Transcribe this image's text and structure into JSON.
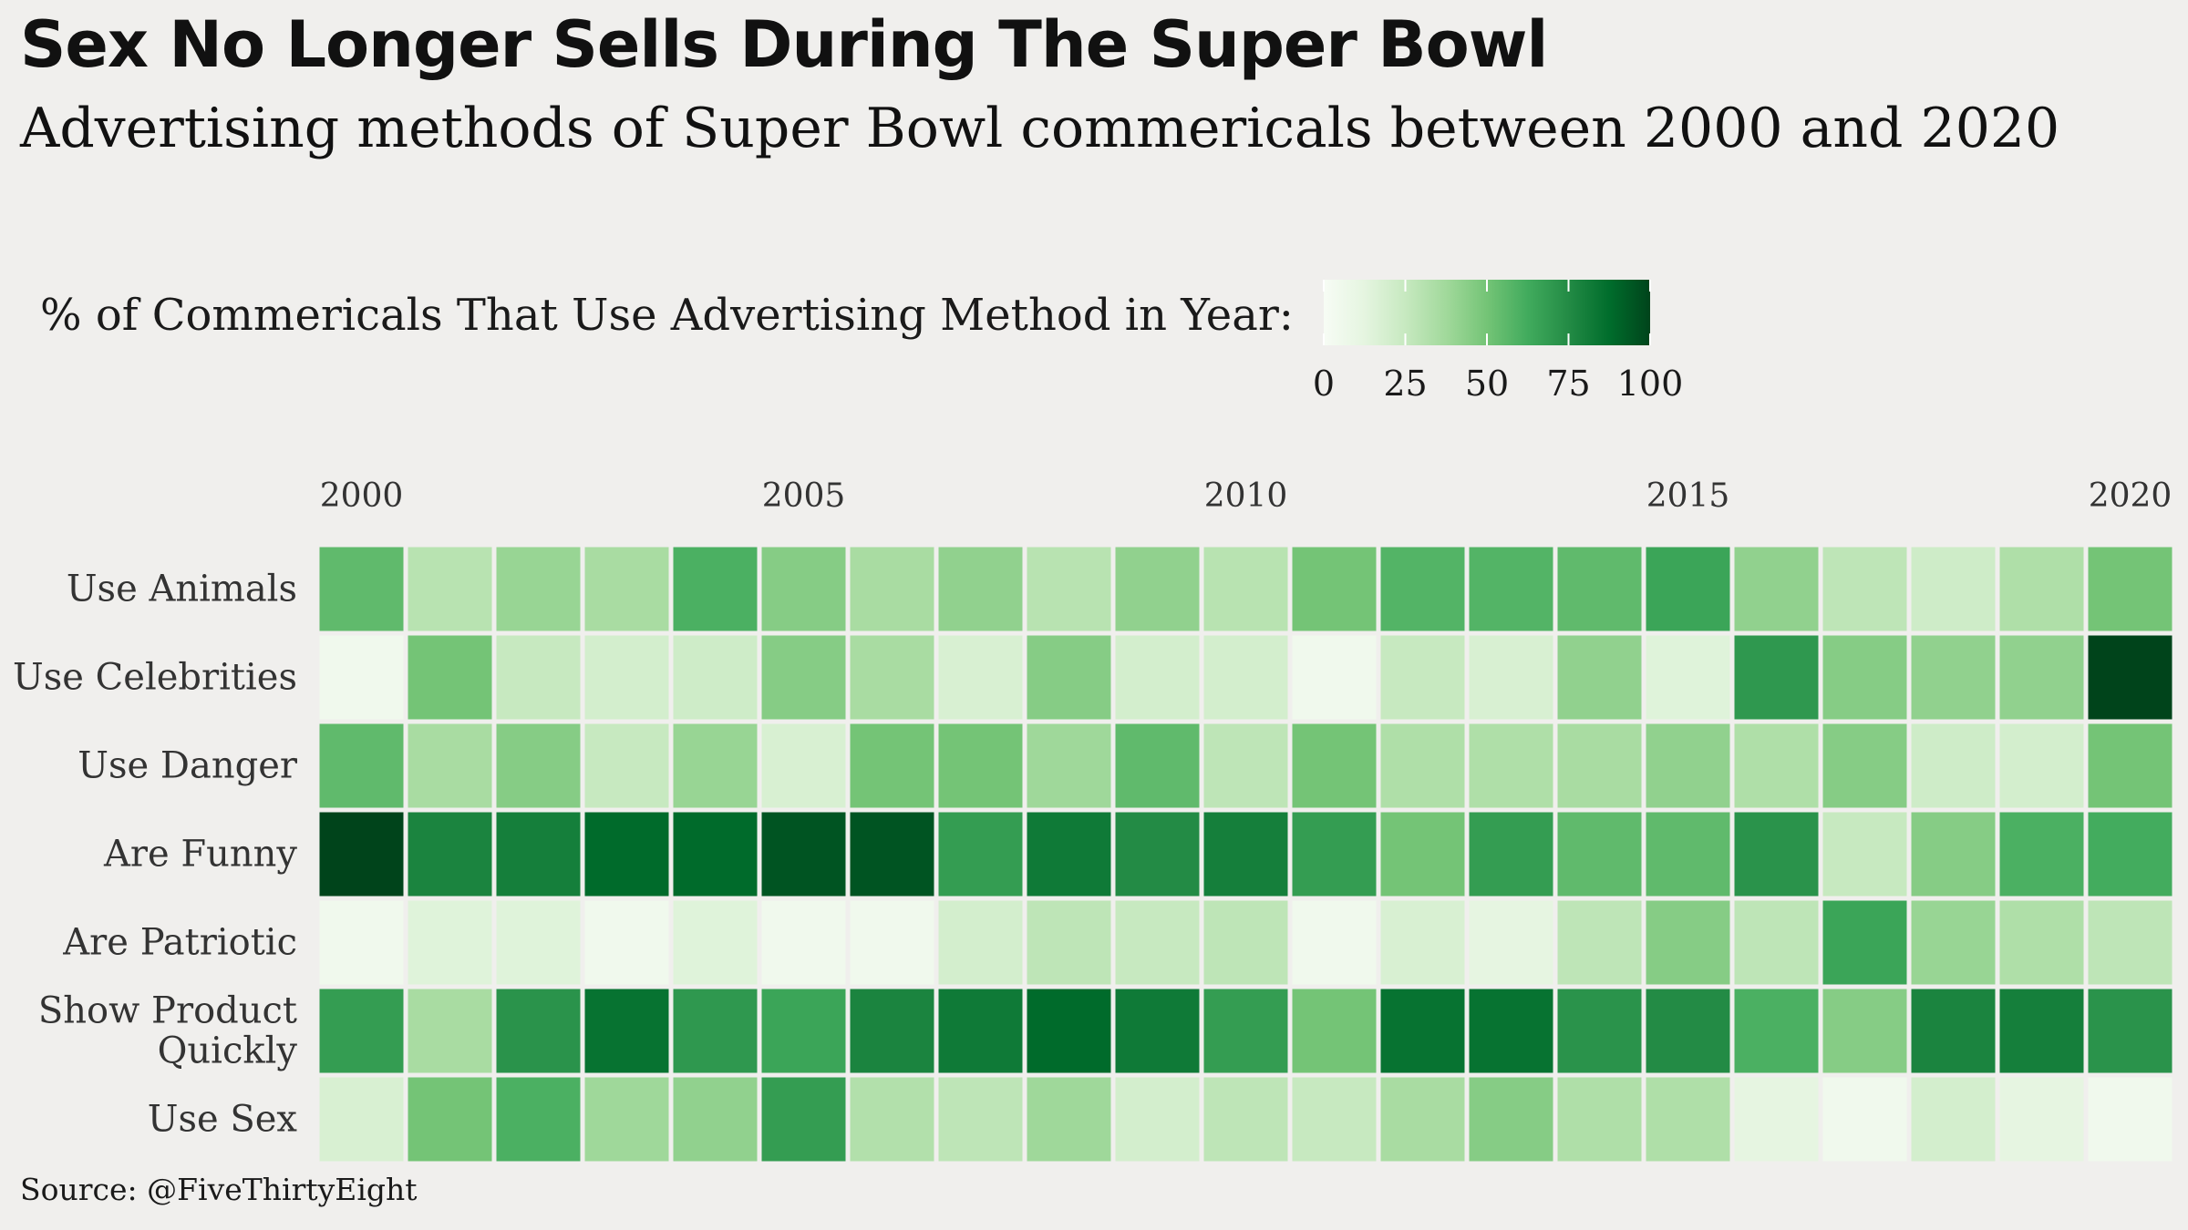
{
  "header": {
    "title": "Sex No Longer Sells During The Super Bowl",
    "subtitle": "Advertising methods of Super Bowl commericals between 2000 and 2020"
  },
  "legend": {
    "title": "% of Commericals That Use Advertising Method in Year:",
    "ticks": [
      "0",
      "25",
      "50",
      "75",
      "100"
    ],
    "tick_values": [
      0,
      25,
      50,
      75,
      100
    ],
    "colors": [
      "#f7fcf5",
      "#e5f5e0",
      "#c7e9c0",
      "#a1d99b",
      "#74c476",
      "#41ab5d",
      "#238b45",
      "#006d2c",
      "#00441b"
    ]
  },
  "caption": "Source: @FiveThirtyEight",
  "chart_data": {
    "type": "heatmap",
    "title": "Sex No Longer Sells During The Super Bowl",
    "subtitle": "Advertising methods of Super Bowl commericals between 2000 and 2020",
    "x": [
      2000,
      2001,
      2002,
      2003,
      2004,
      2005,
      2006,
      2007,
      2008,
      2009,
      2010,
      2011,
      2012,
      2013,
      2014,
      2015,
      2016,
      2017,
      2018,
      2019,
      2020
    ],
    "x_tick_labels": [
      "2000",
      "2005",
      "2010",
      "2015",
      "2020"
    ],
    "x_tick_values": [
      2000,
      2005,
      2010,
      2015,
      2020
    ],
    "y": [
      "Use Animals",
      "Use Celebrities",
      "Use Danger",
      "Are Funny",
      "Are Patriotic",
      "Show Product Quickly",
      "Use Sex"
    ],
    "y_tick_labels": [
      [
        "Use Animals"
      ],
      [
        "Use Celebrities"
      ],
      [
        "Use Danger"
      ],
      [
        "Are Funny"
      ],
      [
        "Are Patriotic"
      ],
      [
        "Show Product",
        "Quickly"
      ],
      [
        "Use Sex"
      ]
    ],
    "value_range": [
      0,
      100
    ],
    "values": [
      [
        55,
        30,
        40,
        35,
        60,
        45,
        35,
        42,
        30,
        42,
        30,
        50,
        58,
        58,
        55,
        65,
        42,
        28,
        22,
        33,
        50
      ],
      [
        5,
        50,
        25,
        20,
        22,
        45,
        35,
        18,
        45,
        20,
        20,
        5,
        25,
        18,
        42,
        15,
        70,
        45,
        42,
        42,
        100
      ],
      [
        55,
        35,
        45,
        25,
        40,
        18,
        50,
        50,
        38,
        55,
        28,
        50,
        33,
        33,
        35,
        42,
        33,
        45,
        22,
        20,
        50
      ],
      [
        100,
        78,
        80,
        88,
        88,
        95,
        95,
        68,
        82,
        75,
        80,
        68,
        50,
        68,
        55,
        55,
        72,
        25,
        45,
        60,
        62
      ],
      [
        5,
        15,
        15,
        5,
        15,
        5,
        5,
        20,
        28,
        25,
        28,
        5,
        18,
        12,
        28,
        45,
        28,
        65,
        40,
        33,
        28
      ],
      [
        68,
        35,
        72,
        85,
        70,
        65,
        78,
        82,
        88,
        82,
        68,
        50,
        85,
        85,
        72,
        75,
        60,
        45,
        78,
        80,
        72
      ],
      [
        18,
        50,
        60,
        38,
        42,
        68,
        32,
        28,
        38,
        20,
        28,
        25,
        35,
        45,
        33,
        33,
        12,
        5,
        20,
        12,
        5
      ]
    ]
  }
}
